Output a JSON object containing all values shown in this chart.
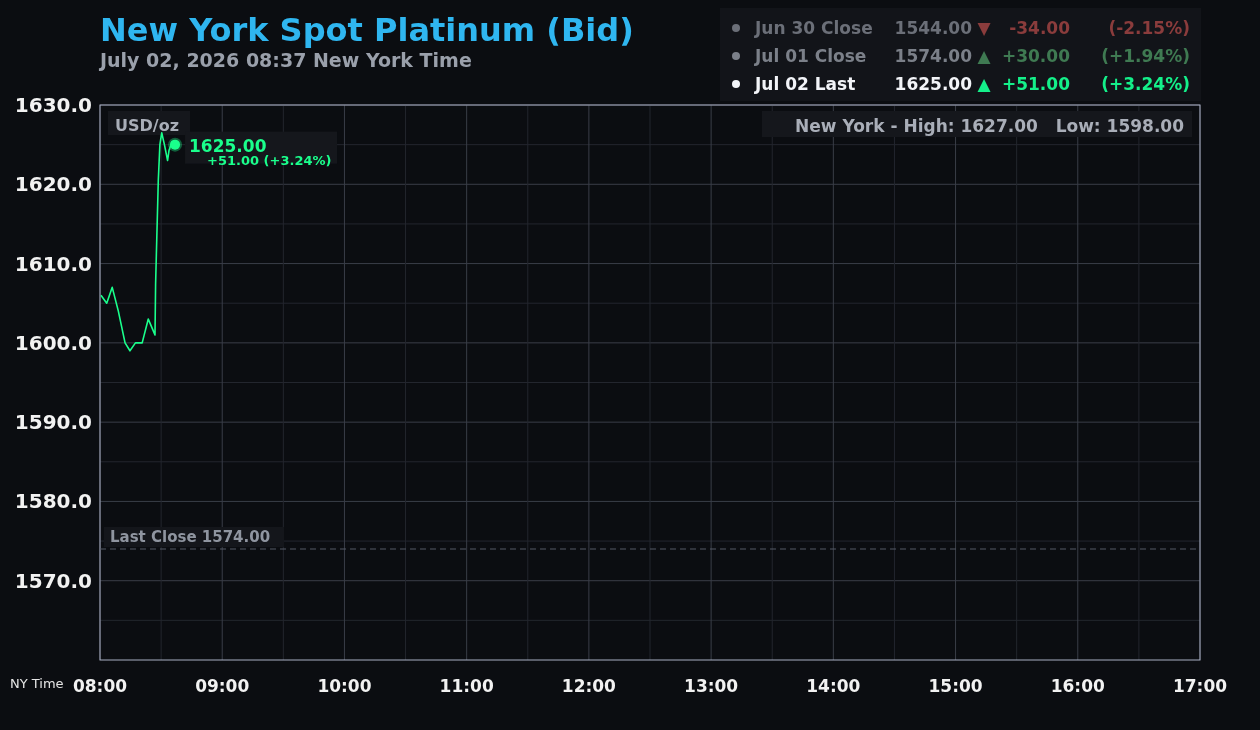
{
  "chart_data": {
    "type": "line",
    "title": "New York Spot Platinum (Bid)",
    "subtitle": "July 02, 2026 08:37 New York Time",
    "xlabel": "NY Time",
    "x": [
      8.008,
      8.055,
      8.1,
      8.15,
      8.205,
      8.245,
      8.29,
      8.345,
      8.395,
      8.45,
      8.455,
      8.477,
      8.49,
      8.505,
      8.527,
      8.553,
      8.565,
      8.59,
      8.614
    ],
    "series": [
      {
        "color": "#1aff8c",
        "values": [
          1606,
          1605,
          1607,
          1604,
          1600,
          1599,
          1600,
          1600,
          1603,
          1601,
          1607.5,
          1620.5,
          1625,
          1626.5,
          1625,
          1623,
          1624.3,
          1625.4,
          1625
        ]
      }
    ],
    "xlim": [
      8,
      17
    ],
    "xticks": [
      {
        "value": 8,
        "label": "08:00"
      },
      {
        "value": 8.5,
        "label": null
      },
      {
        "value": 9,
        "label": "09:00"
      },
      {
        "value": 9.5,
        "label": null
      },
      {
        "value": 10,
        "label": "10:00"
      },
      {
        "value": 10.5,
        "label": null
      },
      {
        "value": 11,
        "label": "11:00"
      },
      {
        "value": 11.5,
        "label": null
      },
      {
        "value": 12,
        "label": "12:00"
      },
      {
        "value": 12.5,
        "label": null
      },
      {
        "value": 13,
        "label": "13:00"
      },
      {
        "value": 13.5,
        "label": null
      },
      {
        "value": 14,
        "label": "14:00"
      },
      {
        "value": 14.5,
        "label": null
      },
      {
        "value": 15,
        "label": "15:00"
      },
      {
        "value": 15.5,
        "label": null
      },
      {
        "value": 16,
        "label": "16:00"
      },
      {
        "value": 16.5,
        "label": null
      },
      {
        "value": 17,
        "label": "17:00"
      }
    ],
    "ylim": [
      1560,
      1630
    ],
    "yticks": [
      {
        "value": 1565,
        "label": null
      },
      {
        "value": 1570,
        "label": "1570.0"
      },
      {
        "value": 1575,
        "label": null
      },
      {
        "value": 1580,
        "label": "1580.0"
      },
      {
        "value": 1585,
        "label": null
      },
      {
        "value": 1590,
        "label": "1590.0"
      },
      {
        "value": 1595,
        "label": null
      },
      {
        "value": 1600,
        "label": "1600.0"
      },
      {
        "value": 1605,
        "label": null
      },
      {
        "value": 1610,
        "label": "1610.0"
      },
      {
        "value": 1615,
        "label": null
      },
      {
        "value": 1620,
        "label": "1620.0"
      },
      {
        "value": 1625,
        "label": null
      },
      {
        "value": 1630,
        "label": "1630.0"
      }
    ],
    "grid": true,
    "marker": "none",
    "line_style": "solid",
    "ref_lines": [
      {
        "axis": "y",
        "value": 1574,
        "label": "Last Close 1574.00",
        "color": "#555a66",
        "line_style": "dashed"
      }
    ],
    "annotations": [
      "USD/oz",
      "New York - High: 1627.00   Low: 1598.00",
      {
        "text": "1625.00",
        "x": 8.614,
        "y": 1625
      },
      {
        "text": "+51.00 (+3.24%)",
        "x": 8.614,
        "y": 1625
      },
      "Jun 30 Close",
      "1544.00",
      "▼",
      "-34.00",
      "(-2.15%)",
      "Jul 01 Close",
      "1574.00",
      "▲",
      "+30.00",
      "(+1.94%)",
      "Jul 02 Last",
      "1625.00",
      "▲",
      "+51.00",
      "(+3.24%)"
    ]
  }
}
